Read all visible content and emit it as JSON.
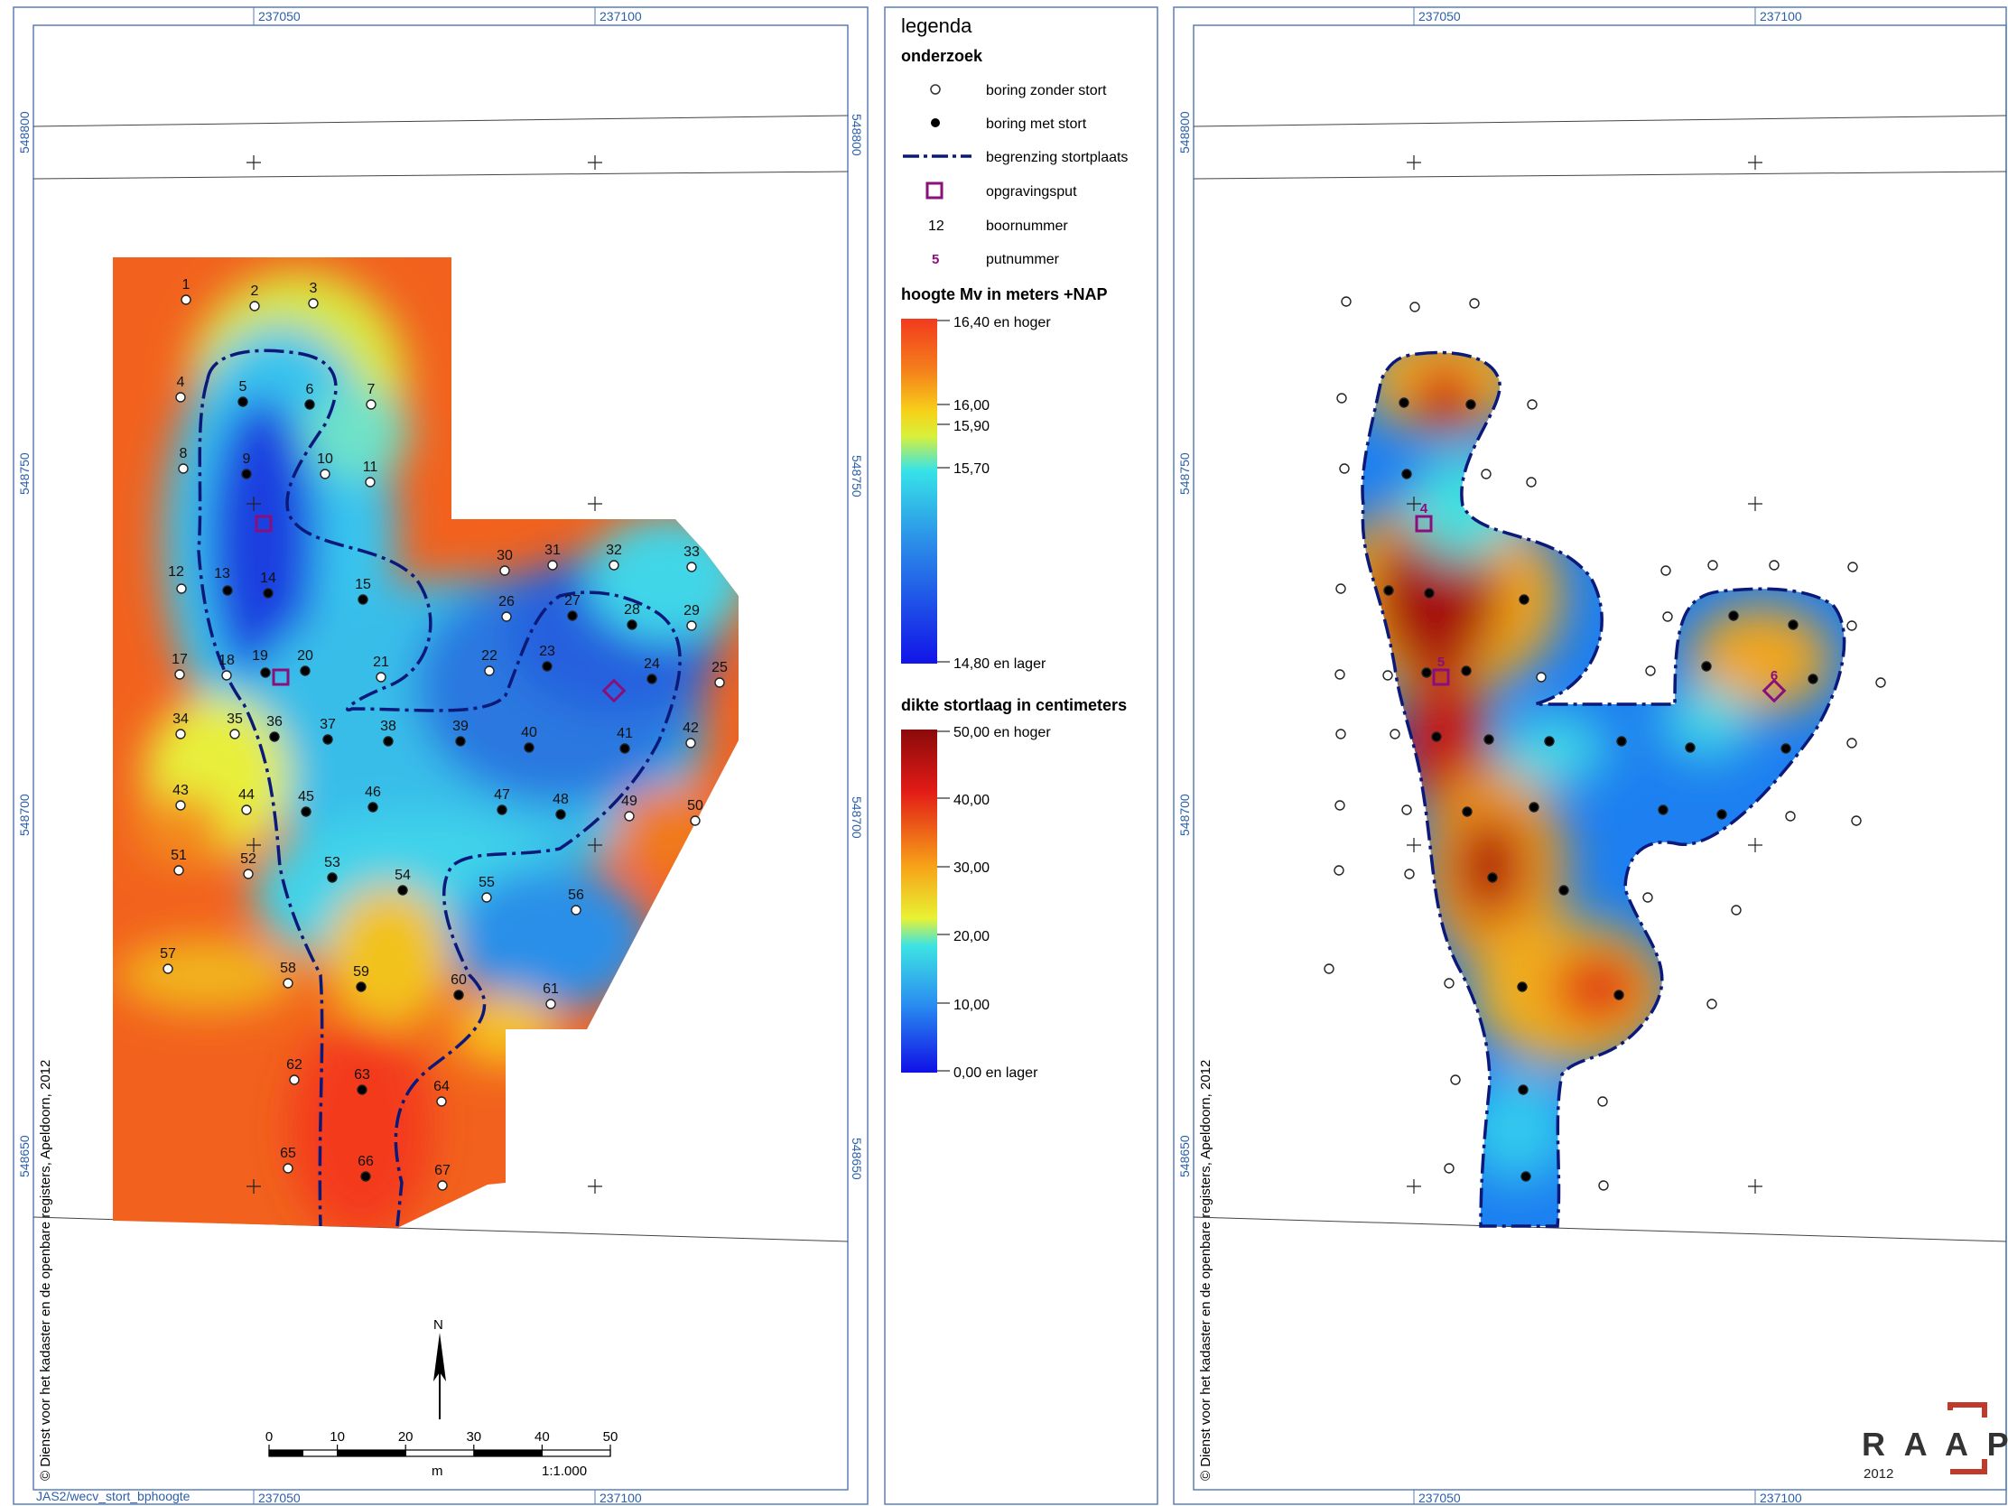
{
  "grid_labels": {
    "x_a": "237050",
    "x_b": "237100",
    "y_800": "548800",
    "y_750": "548750",
    "y_700": "548700",
    "y_650": "548650"
  },
  "copyright": "© Dienst voor het kadaster en de openbare registers, Apeldoorn, 2012",
  "file_ref": "JAS2/wecv_stort_bphoogte",
  "north_label": "N",
  "scalebar": {
    "ticks": [
      "0",
      "10",
      "20",
      "30",
      "40",
      "50"
    ],
    "unit": "m",
    "ratio": "1:1.000"
  },
  "legend": {
    "title": "legenda",
    "section_research": "onderzoek",
    "items": {
      "open_boring": "boring zonder stort",
      "filled_boring": "boring met stort",
      "boundary": "begrenzing stortplaats",
      "pit": "opgravingsput",
      "boring_sample": "12",
      "boring_number": "boornummer",
      "pit_sample": "5",
      "pit_number": "putnummer"
    },
    "height": {
      "title": "hoogte Mv in meters +NAP",
      "labels": [
        "16,40 en hoger",
        "16,00",
        "15,90",
        "15,70",
        "14,80 en lager"
      ]
    },
    "thickness": {
      "title": "dikte stortlaag in centimeters",
      "labels": [
        "50,00 en hoger",
        "40,00",
        "30,00",
        "20,00",
        "10,00",
        "0,00 en lager"
      ]
    }
  },
  "logo": {
    "text": "R A A P",
    "year": "2012"
  },
  "borings": [
    {
      "n": "1",
      "filled": false
    },
    {
      "n": "2",
      "filled": false
    },
    {
      "n": "3",
      "filled": false
    },
    {
      "n": "4",
      "filled": false
    },
    {
      "n": "5",
      "filled": true
    },
    {
      "n": "6",
      "filled": true
    },
    {
      "n": "7",
      "filled": false
    },
    {
      "n": "8",
      "filled": false
    },
    {
      "n": "9",
      "filled": true
    },
    {
      "n": "10",
      "filled": false
    },
    {
      "n": "11",
      "filled": false
    },
    {
      "n": "12",
      "filled": false
    },
    {
      "n": "13",
      "filled": true
    },
    {
      "n": "14",
      "filled": true
    },
    {
      "n": "15",
      "filled": true
    },
    {
      "n": "17",
      "filled": false
    },
    {
      "n": "18",
      "filled": false
    },
    {
      "n": "19",
      "filled": true
    },
    {
      "n": "20",
      "filled": true
    },
    {
      "n": "21",
      "filled": false
    },
    {
      "n": "22",
      "filled": false
    },
    {
      "n": "23",
      "filled": true
    },
    {
      "n": "24",
      "filled": true
    },
    {
      "n": "25",
      "filled": false
    },
    {
      "n": "26",
      "filled": false
    },
    {
      "n": "27",
      "filled": true
    },
    {
      "n": "28",
      "filled": true
    },
    {
      "n": "29",
      "filled": false
    },
    {
      "n": "30",
      "filled": false
    },
    {
      "n": "31",
      "filled": false
    },
    {
      "n": "32",
      "filled": false
    },
    {
      "n": "33",
      "filled": false
    },
    {
      "n": "34",
      "filled": false
    },
    {
      "n": "35",
      "filled": false
    },
    {
      "n": "36",
      "filled": true
    },
    {
      "n": "37",
      "filled": true
    },
    {
      "n": "38",
      "filled": true
    },
    {
      "n": "39",
      "filled": true
    },
    {
      "n": "40",
      "filled": true
    },
    {
      "n": "41",
      "filled": true
    },
    {
      "n": "42",
      "filled": false
    },
    {
      "n": "43",
      "filled": false
    },
    {
      "n": "44",
      "filled": false
    },
    {
      "n": "45",
      "filled": true
    },
    {
      "n": "46",
      "filled": true
    },
    {
      "n": "47",
      "filled": true
    },
    {
      "n": "48",
      "filled": true
    },
    {
      "n": "49",
      "filled": false
    },
    {
      "n": "50",
      "filled": false
    },
    {
      "n": "51",
      "filled": false
    },
    {
      "n": "52",
      "filled": false
    },
    {
      "n": "53",
      "filled": true
    },
    {
      "n": "54",
      "filled": true
    },
    {
      "n": "55",
      "filled": false
    },
    {
      "n": "56",
      "filled": false
    },
    {
      "n": "57",
      "filled": false
    },
    {
      "n": "58",
      "filled": false
    },
    {
      "n": "59",
      "filled": true
    },
    {
      "n": "60",
      "filled": true
    },
    {
      "n": "61",
      "filled": false
    },
    {
      "n": "62",
      "filled": false
    },
    {
      "n": "63",
      "filled": true
    },
    {
      "n": "64",
      "filled": false
    },
    {
      "n": "65",
      "filled": false
    },
    {
      "n": "66",
      "filled": true
    },
    {
      "n": "67",
      "filled": false
    }
  ],
  "pits": [
    "4",
    "5",
    "6"
  ],
  "colors": {
    "frame": "#5a7fb5",
    "coord_text": "#2b5fa8",
    "boundary": "#0b1a7a",
    "pit": "#8a0f7a",
    "logo_red": "#c0392b",
    "logo_grey": "#333333"
  }
}
